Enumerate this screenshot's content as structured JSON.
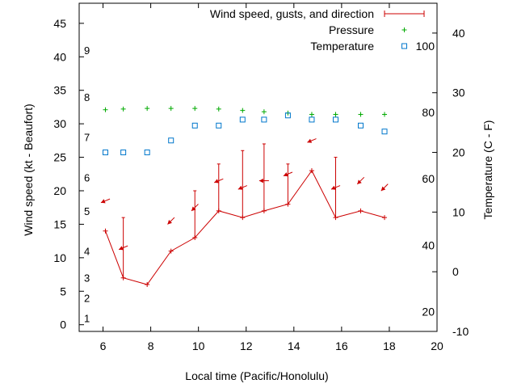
{
  "chart_data": {
    "type": "line",
    "xlabel": "Local time (Pacific/Honolulu)",
    "ylabel_left": "Wind speed (kt - Beaufort)",
    "ylabel_right": "Temperature (C - F)",
    "x_range": [
      5,
      20
    ],
    "y_left_range": [
      -1,
      48
    ],
    "y_right_range": [
      -10,
      45
    ],
    "x_ticks": [
      6,
      8,
      10,
      12,
      14,
      16,
      18,
      20
    ],
    "y_left_ticks": [
      0,
      5,
      10,
      15,
      20,
      25,
      30,
      35,
      40,
      45
    ],
    "y_right_ticks_c": [
      -10,
      0,
      10,
      20,
      30,
      40
    ],
    "y_right_ticks_f": [
      {
        "label": "20",
        "c": -6.7
      },
      {
        "label": "40",
        "c": 4.4
      },
      {
        "label": "60",
        "c": 15.6
      },
      {
        "label": "80",
        "c": 26.7
      },
      {
        "label": "100",
        "c": 37.8
      }
    ],
    "beaufort_ticks": [
      {
        "label": "1",
        "kt": 1
      },
      {
        "label": "2",
        "kt": 4
      },
      {
        "label": "3",
        "kt": 7
      },
      {
        "label": "4",
        "kt": 11
      },
      {
        "label": "5",
        "kt": 17
      },
      {
        "label": "6",
        "kt": 22
      },
      {
        "label": "7",
        "kt": 28
      },
      {
        "label": "8",
        "kt": 34
      },
      {
        "label": "9",
        "kt": 41
      }
    ],
    "legend": [
      {
        "name": "Wind speed, gusts, and direction",
        "color": "#cc0000",
        "marker": "errorbar"
      },
      {
        "name": "Pressure",
        "color": "#00aa00",
        "marker": "plus"
      },
      {
        "name": "Temperature",
        "color": "#0077cc",
        "marker": "square"
      }
    ],
    "legend_position": "top-right",
    "series": [
      {
        "name": "Wind speed, gusts, and direction",
        "x": [
          6.1,
          6.85,
          7.85,
          8.85,
          9.85,
          10.85,
          11.85,
          12.75,
          13.75,
          14.75,
          15.75,
          16.8,
          17.8
        ],
        "speed": [
          14,
          7,
          6,
          11,
          13,
          17,
          16,
          17,
          18,
          23,
          16,
          17,
          16
        ],
        "gust": [
          14,
          16,
          6,
          11,
          20,
          24,
          26,
          27,
          24,
          23,
          25,
          17,
          16
        ],
        "direction": [
          "ENE",
          "ENE",
          null,
          "NE",
          "NE",
          "ENE",
          "ENE",
          "E",
          "ENE",
          "ENE",
          "ENE",
          "NE",
          "NE"
        ]
      },
      {
        "name": "Pressure",
        "x": [
          6.1,
          6.85,
          7.85,
          8.85,
          9.85,
          10.85,
          11.85,
          12.75,
          13.75,
          14.75,
          15.75,
          16.8,
          17.8
        ],
        "y_left": [
          32.1,
          32.2,
          32.3,
          32.3,
          32.3,
          32.2,
          32.0,
          31.8,
          31.6,
          31.4,
          31.4,
          31.4,
          31.4
        ]
      },
      {
        "name": "Temperature",
        "x": [
          6.1,
          6.85,
          7.85,
          8.85,
          9.85,
          10.85,
          11.85,
          12.75,
          13.75,
          14.75,
          15.75,
          16.8,
          17.8
        ],
        "temp_c": [
          20,
          20,
          20,
          22,
          24.5,
          24.5,
          25.5,
          25.5,
          26.2,
          25.5,
          25.5,
          24.5,
          23.5
        ]
      }
    ]
  }
}
